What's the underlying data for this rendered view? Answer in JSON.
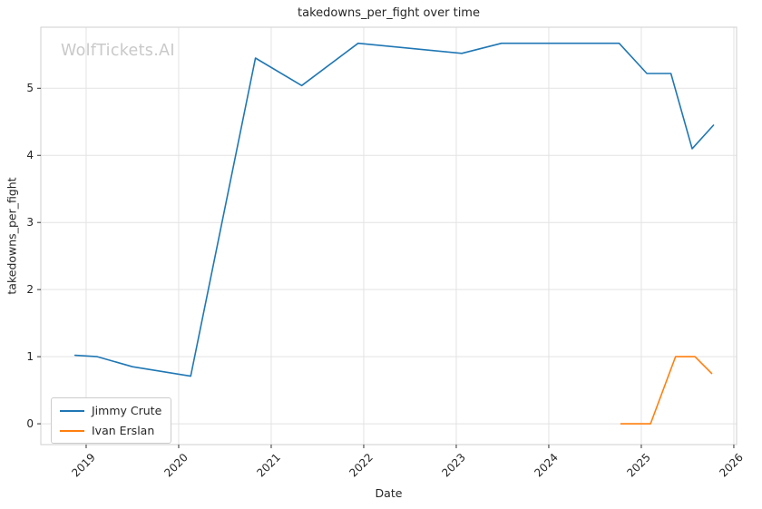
{
  "chart_data": {
    "type": "line",
    "title": "takedowns_per_fight over time",
    "xlabel": "Date",
    "ylabel": "takedowns_per_fight",
    "watermark": "WolfTickets.AI",
    "grid": true,
    "legend_position": "lower left",
    "xlim": [
      2018.51,
      2026.03
    ],
    "ylim": [
      -0.31,
      5.91
    ],
    "x_ticks": [
      2019,
      2020,
      2021,
      2022,
      2023,
      2024,
      2025,
      2026
    ],
    "y_ticks": [
      0,
      1,
      2,
      3,
      4,
      5
    ],
    "colors": {
      "grid": "#e3e3e3",
      "border": "#cfcfcf",
      "tick": "#333333",
      "text": "#262626",
      "watermark": "#c9c9c9"
    },
    "series": [
      {
        "name": "Jimmy Crute",
        "color": "#1f77b4",
        "points": [
          [
            2018.88,
            1.02
          ],
          [
            2019.12,
            1.0
          ],
          [
            2019.5,
            0.85
          ],
          [
            2020.13,
            0.71
          ],
          [
            2020.83,
            5.45
          ],
          [
            2021.33,
            5.04
          ],
          [
            2021.94,
            5.67
          ],
          [
            2023.06,
            5.52
          ],
          [
            2023.49,
            5.67
          ],
          [
            2024.76,
            5.67
          ],
          [
            2025.06,
            5.22
          ],
          [
            2025.32,
            5.22
          ],
          [
            2025.55,
            4.1
          ],
          [
            2025.78,
            4.45
          ]
        ]
      },
      {
        "name": "Ivan Erslan",
        "color": "#ff7f0e",
        "points": [
          [
            2024.78,
            0.0
          ],
          [
            2025.1,
            0.0
          ],
          [
            2025.37,
            1.0
          ],
          [
            2025.58,
            1.0
          ],
          [
            2025.76,
            0.75
          ]
        ]
      }
    ]
  }
}
